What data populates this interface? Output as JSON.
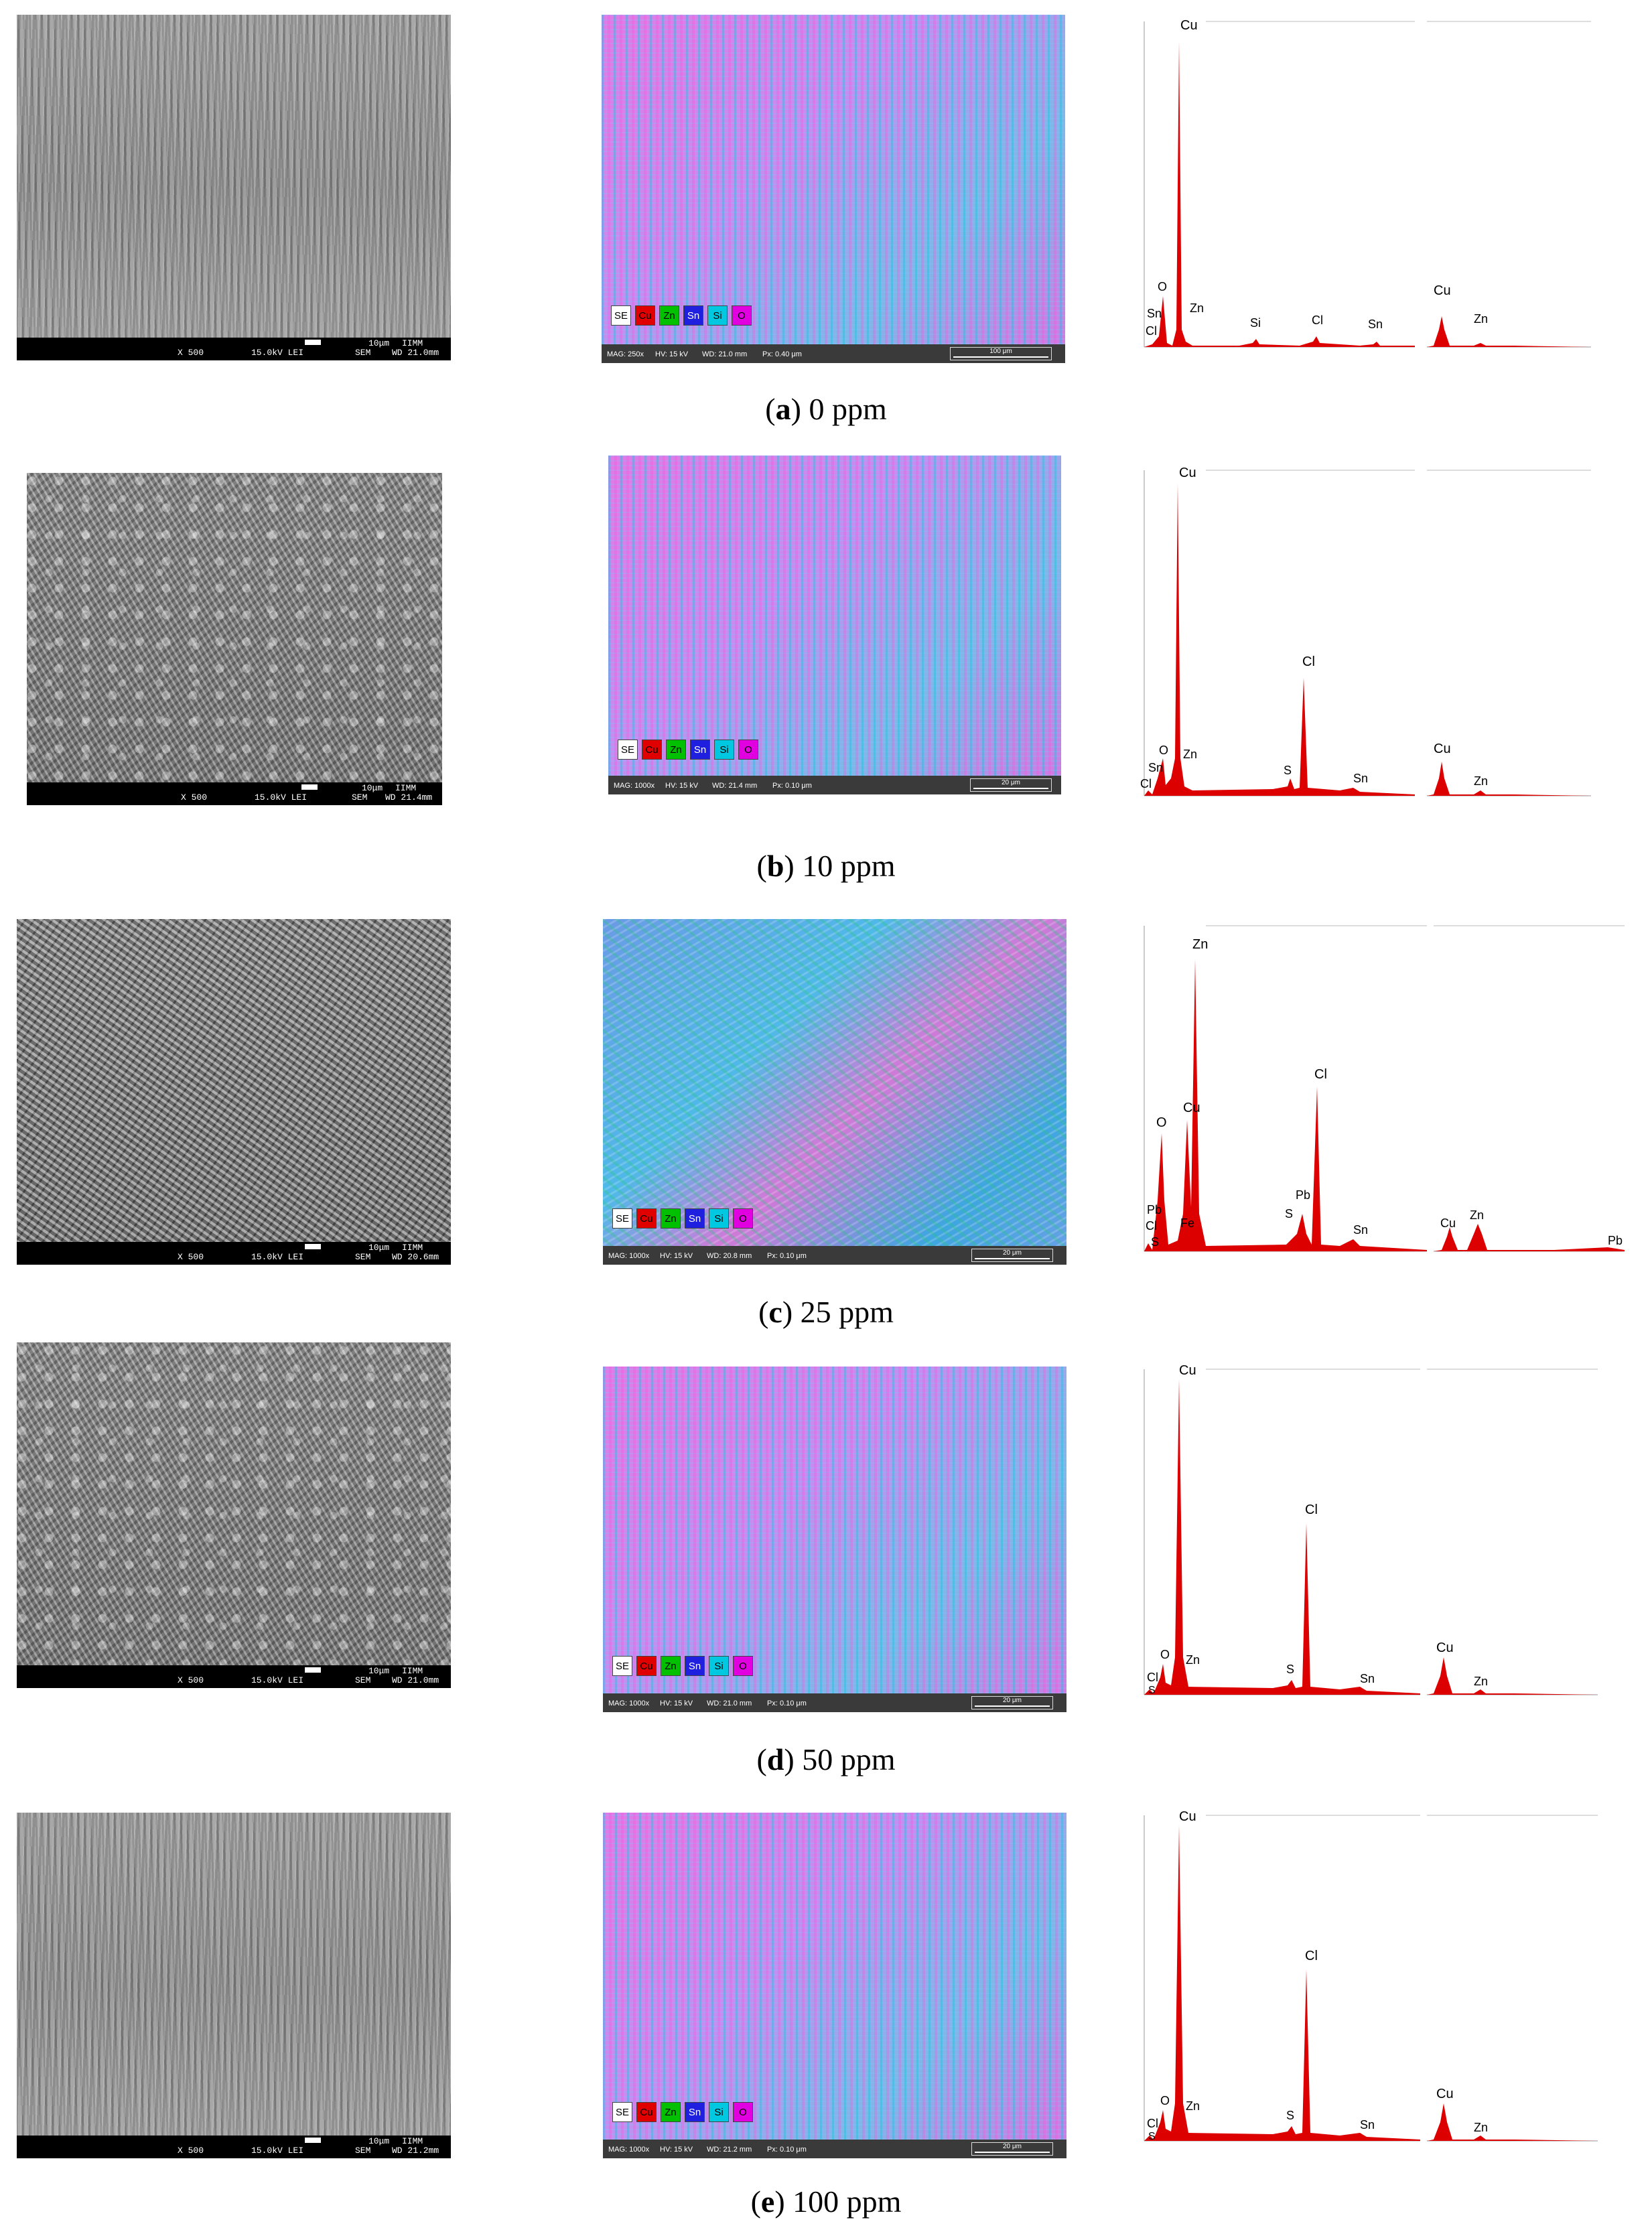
{
  "figure": {
    "panels": [
      {
        "id": "a",
        "caption_letter": "a",
        "caption_text": " 0 ppm",
        "sem": {
          "magnification": "X 500",
          "voltage": "15.0kV LEI",
          "mode": "SEM",
          "scale": "10μm",
          "org": "IIMM",
          "wd": "WD 21.0mm"
        },
        "map": {
          "legend": [
            "SE",
            "Cu",
            "Zn",
            "Sn",
            "Si",
            "O"
          ],
          "mag": "MAG: 250x",
          "hv": "HV: 15 kV",
          "wd": "WD: 21.0 mm",
          "px": "Px: 0.40 μm",
          "scale": "100 μm"
        },
        "spectrum_labels": [
          "Cu",
          "O",
          "Sn",
          "Cl",
          "Zn",
          "Si",
          "Cl",
          "Sn",
          "Cu",
          "Zn"
        ]
      },
      {
        "id": "b",
        "caption_letter": "b",
        "caption_text": " 10 ppm",
        "sem": {
          "magnification": "X 500",
          "voltage": "15.0kV LEI",
          "mode": "SEM",
          "scale": "10μm",
          "org": "IIMM",
          "wd": "WD 21.4mm"
        },
        "map": {
          "legend": [
            "SE",
            "Cu",
            "Zn",
            "Sn",
            "Si",
            "O"
          ],
          "mag": "MAG: 1000x",
          "hv": "HV: 15 kV",
          "wd": "WD: 21.4 mm",
          "px": "Px: 0.10 μm",
          "scale": "20 μm"
        },
        "spectrum_labels": [
          "Cu",
          "Cl",
          "O",
          "Sn",
          "Cl",
          "Zn",
          "S",
          "Sn",
          "Cu",
          "Zn"
        ]
      },
      {
        "id": "c",
        "caption_letter": "c",
        "caption_text": " 25 ppm",
        "sem": {
          "magnification": "X 500",
          "voltage": "15.0kV LEI",
          "mode": "SEM",
          "scale": "10μm",
          "org": "IIMM",
          "wd": "WD 20.6mm"
        },
        "map": {
          "legend": [
            "SE",
            "Cu",
            "Zn",
            "Sn",
            "Si",
            "O"
          ],
          "mag": "MAG: 1000x",
          "hv": "HV: 15 kV",
          "wd": "WD: 20.8 mm",
          "px": "Px: 0.10 μm",
          "scale": "20 μm"
        },
        "spectrum_labels": [
          "Zn",
          "O",
          "Cu",
          "Cl",
          "Pb",
          "Cl",
          "S",
          "Fe",
          "Pb",
          "S",
          "Sn",
          "Cu",
          "Zn",
          "Pb"
        ]
      },
      {
        "id": "d",
        "caption_letter": "d",
        "caption_text": " 50 ppm",
        "sem": {
          "magnification": "X 500",
          "voltage": "15.0kV LEI",
          "mode": "SEM",
          "scale": "10μm",
          "org": "IIMM",
          "wd": "WD 21.0mm"
        },
        "map": {
          "legend": [
            "SE",
            "Cu",
            "Zn",
            "Sn",
            "Si",
            "O"
          ],
          "mag": "MAG: 1000x",
          "hv": "HV: 15 kV",
          "wd": "WD: 21.0 mm",
          "px": "Px: 0.10 μm",
          "scale": "20 μm"
        },
        "spectrum_labels": [
          "Cu",
          "Cl",
          "O",
          "Zn",
          "Cl",
          "S",
          "S",
          "Sn",
          "Cu",
          "Zn"
        ]
      },
      {
        "id": "e",
        "caption_letter": "e",
        "caption_text": " 100 ppm",
        "sem": {
          "magnification": "X 500",
          "voltage": "15.0kV LEI",
          "mode": "SEM",
          "scale": "10μm",
          "org": "IIMM",
          "wd": "WD 21.2mm"
        },
        "map": {
          "legend": [
            "SE",
            "Cu",
            "Zn",
            "Sn",
            "Si",
            "O"
          ],
          "mag": "MAG: 1000x",
          "hv": "HV: 15 kV",
          "wd": "WD: 21.2 mm",
          "px": "Px: 0.10 μm",
          "scale": "20 μm"
        },
        "spectrum_labels": [
          "Cu",
          "Cl",
          "O",
          "Zn",
          "Cl",
          "S",
          "S",
          "Sn",
          "Cu",
          "Zn"
        ]
      }
    ]
  },
  "colors": {
    "legend_SE": "#ffffff",
    "legend_Cu": "#e00000",
    "legend_Zn": "#00c000",
    "legend_Sn": "#1f1fe0",
    "legend_Si": "#00c8e0",
    "legend_O": "#e000e0",
    "spectrum_fill": "#dd0000"
  }
}
